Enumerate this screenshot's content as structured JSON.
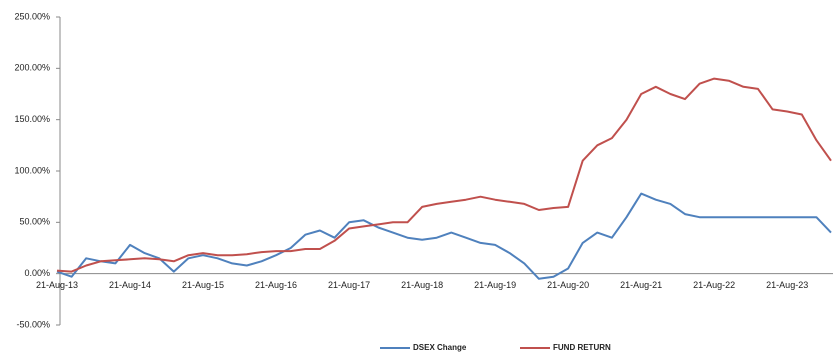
{
  "chart_data": {
    "type": "line",
    "categories": [
      "21-Aug-13",
      null,
      null,
      null,
      null,
      "21-Aug-14",
      null,
      null,
      null,
      null,
      "21-Aug-15",
      null,
      null,
      null,
      null,
      "21-Aug-16",
      null,
      null,
      null,
      null,
      "21-Aug-17",
      null,
      null,
      null,
      null,
      "21-Aug-18",
      null,
      null,
      null,
      null,
      "21-Aug-19",
      null,
      null,
      null,
      null,
      "21-Aug-20",
      null,
      null,
      null,
      null,
      "21-Aug-21",
      null,
      null,
      null,
      null,
      "21-Aug-22",
      null,
      null,
      null,
      null,
      "21-Aug-23",
      null,
      null,
      null
    ],
    "series": [
      {
        "name": "DSEX Change",
        "color": "#4f81bd",
        "values": [
          2,
          -3,
          15,
          12,
          10,
          28,
          20,
          15,
          2,
          15,
          18,
          15,
          10,
          8,
          12,
          18,
          25,
          38,
          42,
          35,
          50,
          52,
          45,
          40,
          35,
          33,
          35,
          40,
          35,
          30,
          28,
          20,
          10,
          -5,
          -3,
          5,
          30,
          40,
          35,
          55,
          78,
          72,
          68,
          58,
          55,
          55,
          55,
          55,
          55,
          55,
          55,
          55,
          55,
          40
        ]
      },
      {
        "name": "FUND RETURN",
        "color": "#c0504d",
        "values": [
          3,
          2,
          8,
          12,
          13,
          14,
          15,
          14,
          12,
          18,
          20,
          18,
          18,
          19,
          21,
          22,
          22,
          24,
          24,
          32,
          44,
          46,
          48,
          50,
          50,
          65,
          68,
          70,
          72,
          75,
          72,
          70,
          68,
          62,
          64,
          65,
          110,
          125,
          132,
          150,
          175,
          182,
          175,
          170,
          185,
          190,
          188,
          182,
          180,
          160,
          158,
          155,
          130,
          110
        ]
      }
    ],
    "ylim": [
      -50,
      250
    ],
    "yticks": [
      {
        "value": -50,
        "label": "-50.00%"
      },
      {
        "value": 0,
        "label": "0.00%"
      },
      {
        "value": 50,
        "label": "50.00%"
      },
      {
        "value": 100,
        "label": "100.00%"
      },
      {
        "value": 150,
        "label": "150.00%"
      },
      {
        "value": 200,
        "label": "200.00%"
      },
      {
        "value": 250,
        "label": "250.00%"
      }
    ],
    "grid": false,
    "legend": "bottom"
  }
}
